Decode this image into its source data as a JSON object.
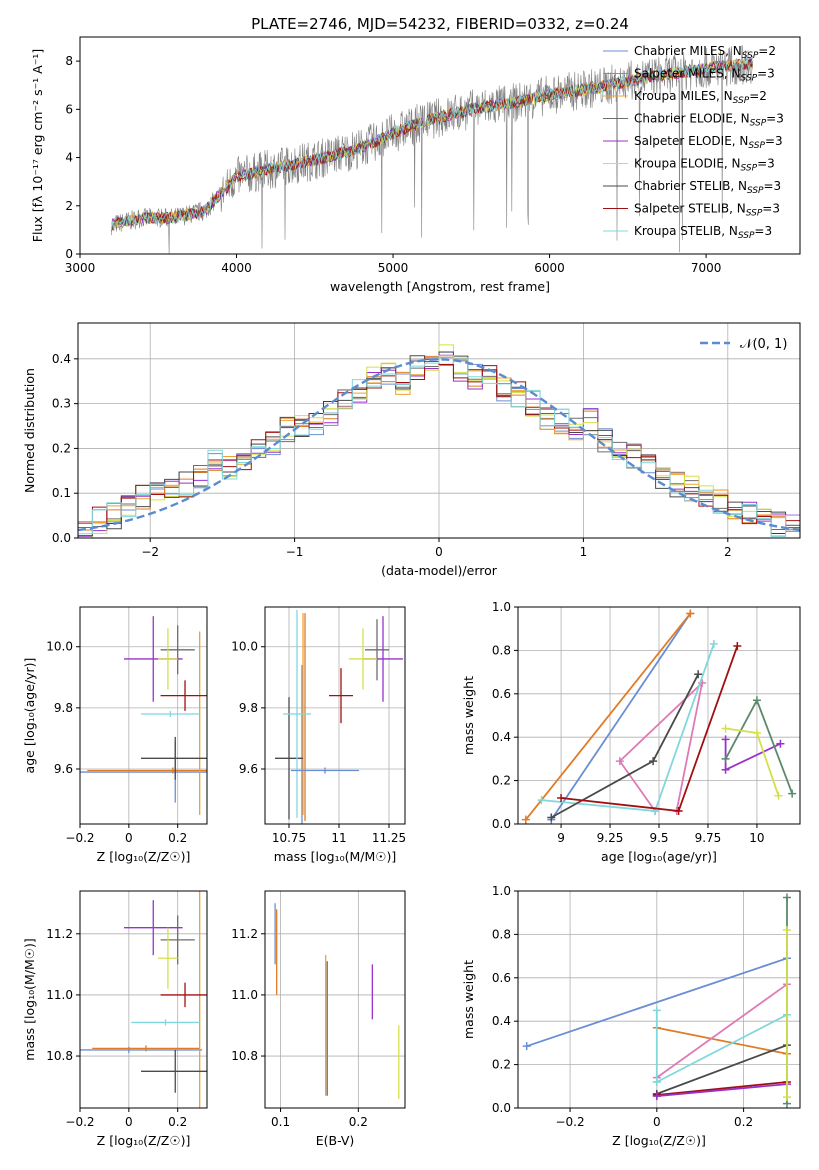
{
  "series_colors": [
    "#6a8ed4",
    "#e07b27",
    "#f0a030",
    "#6e6e6e",
    "#9932cc",
    "#d4e04a",
    "#4a4a4a",
    "#a01010",
    "#80d8dc"
  ],
  "chart_data": [
    {
      "id": "spectrum",
      "type": "line",
      "title": "PLATE=2746, MJD=54232, FIBERID=0332, z=0.24",
      "xlabel": "wavelength [Angstrom, rest frame]",
      "ylabel": "Flux [f_λ 10^-17 erg cm^-2 s^-1 A^-1]",
      "xlim": [
        3000,
        7600
      ],
      "ylim": [
        0,
        9
      ],
      "xticks": [
        3000,
        4000,
        5000,
        6000,
        7000
      ],
      "yticks": [
        0,
        2,
        4,
        6,
        8
      ],
      "legend_position": "top-right",
      "legend": [
        "Chabrier MILES, N_SSP=2",
        "Salpeter MILES, N_SSP=3",
        "Kroupa MILES, N_SSP=2",
        "Chabrier ELODIE, N_SSP=3",
        "Salpeter ELODIE, N_SSP=3",
        "Kroupa ELODIE, N_SSP=3",
        "Chabrier STELIB, N_SSP=3",
        "Salpeter STELIB, N_SSP=3",
        "Kroupa STELIB, N_SSP=3"
      ],
      "continuum": [
        [
          3200,
          1.2
        ],
        [
          3400,
          1.5
        ],
        [
          3600,
          1.5
        ],
        [
          3800,
          1.8
        ],
        [
          4000,
          3.2
        ],
        [
          4200,
          3.5
        ],
        [
          4500,
          3.9
        ],
        [
          4800,
          4.4
        ],
        [
          5000,
          5.0
        ],
        [
          5200,
          5.5
        ],
        [
          5500,
          6.0
        ],
        [
          5800,
          6.3
        ],
        [
          6000,
          6.6
        ],
        [
          6300,
          6.9
        ],
        [
          6600,
          7.3
        ],
        [
          7000,
          7.7
        ],
        [
          7300,
          7.9
        ]
      ],
      "grid": false
    },
    {
      "id": "residuals",
      "type": "histogram",
      "xlabel": "(data-model)/error",
      "ylabel": "Normed distribution",
      "xlim": [
        -2.5,
        2.5
      ],
      "ylim": [
        0,
        0.48
      ],
      "xticks": [
        -2,
        -1,
        0,
        1,
        2
      ],
      "yticks": [
        0.0,
        0.1,
        0.2,
        0.3,
        0.4
      ],
      "legend": [
        "𝒩(0, 1)"
      ],
      "legend_position": "top-right",
      "bin_centers": [
        -2.45,
        -2.35,
        -2.25,
        -2.15,
        -2.05,
        -1.95,
        -1.85,
        -1.75,
        -1.65,
        -1.55,
        -1.45,
        -1.35,
        -1.25,
        -1.15,
        -1.05,
        -0.95,
        -0.85,
        -0.75,
        -0.65,
        -0.55,
        -0.45,
        -0.35,
        -0.25,
        -0.15,
        -0.05,
        0.05,
        0.15,
        0.25,
        0.35,
        0.45,
        0.55,
        0.65,
        0.75,
        0.85,
        0.95,
        1.05,
        1.15,
        1.25,
        1.35,
        1.45,
        1.55,
        1.65,
        1.75,
        1.85,
        1.95,
        2.05,
        2.15,
        2.25,
        2.35,
        2.45
      ],
      "hist_mean": [
        0.03,
        0.04,
        0.05,
        0.07,
        0.09,
        0.1,
        0.12,
        0.12,
        0.14,
        0.17,
        0.16,
        0.18,
        0.2,
        0.21,
        0.24,
        0.25,
        0.26,
        0.28,
        0.31,
        0.33,
        0.36,
        0.37,
        0.35,
        0.38,
        0.4,
        0.41,
        0.38,
        0.36,
        0.37,
        0.33,
        0.32,
        0.3,
        0.27,
        0.26,
        0.24,
        0.26,
        0.22,
        0.2,
        0.18,
        0.17,
        0.14,
        0.12,
        0.11,
        0.1,
        0.08,
        0.06,
        0.05,
        0.04,
        0.03,
        0.03
      ],
      "grid": true
    },
    {
      "id": "age-vs-Z",
      "type": "errorbar",
      "xlabel": "Z [log10(Z/Z☉)]",
      "ylabel": "age  [log10(age/yr)]",
      "xlim": [
        -0.2,
        0.32
      ],
      "ylim": [
        9.42,
        10.13
      ],
      "xticks": [
        -0.2,
        0.0,
        0.2
      ],
      "yticks": [
        9.6,
        9.8,
        10.0
      ],
      "points": [
        {
          "x": 0.19,
          "xerr": 0.4,
          "y": 9.59,
          "yerr": 0.1
        },
        {
          "x": 0.18,
          "xerr": 0.35,
          "y": 9.595,
          "yerr": 0.01
        },
        {
          "x": 0.29,
          "xerr": 0.0,
          "y": 9.75,
          "yerr": 0.3
        },
        {
          "x": 0.2,
          "xerr": 0.07,
          "y": 9.99,
          "yerr": 0.08
        },
        {
          "x": 0.1,
          "xerr": 0.12,
          "y": 9.96,
          "yerr": 0.14
        },
        {
          "x": 0.16,
          "xerr": 0.04,
          "y": 9.96,
          "yerr": 0.1
        },
        {
          "x": 0.19,
          "xerr": 0.14,
          "y": 9.635,
          "yerr": 0.07
        },
        {
          "x": 0.23,
          "xerr": 0.1,
          "y": 9.84,
          "yerr": 0.05
        },
        {
          "x": 0.17,
          "xerr": 0.12,
          "y": 9.78,
          "yerr": 0.01
        }
      ],
      "grid": true
    },
    {
      "id": "age-vs-mass",
      "type": "errorbar",
      "xlabel": "mass [log10(M/M☉)]",
      "ylabel": "",
      "xlim": [
        10.63,
        11.33
      ],
      "ylim": [
        9.42,
        10.13
      ],
      "xticks": [
        10.75,
        11.0,
        11.25
      ],
      "yticks": [
        9.6,
        9.8,
        10.0
      ],
      "points": [
        {
          "x": 10.815,
          "xerr": 0.0,
          "y": 9.64,
          "yerr": 0.3
        },
        {
          "x": 10.83,
          "xerr": 0.0,
          "y": 9.77,
          "yerr": 0.34
        },
        {
          "x": 10.82,
          "xerr": 0.0,
          "y": 9.78,
          "yerr": 0.33
        },
        {
          "x": 11.19,
          "xerr": 0.06,
          "y": 9.99,
          "yerr": 0.1
        },
        {
          "x": 11.22,
          "xerr": 0.1,
          "y": 9.96,
          "yerr": 0.14
        },
        {
          "x": 11.12,
          "xerr": 0.07,
          "y": 9.96,
          "yerr": 0.1
        },
        {
          "x": 10.75,
          "xerr": 0.07,
          "y": 9.635,
          "yerr": 0.2
        },
        {
          "x": 11.01,
          "xerr": 0.06,
          "y": 9.84,
          "yerr": 0.09
        },
        {
          "x": 10.79,
          "xerr": 0.07,
          "y": 9.78,
          "yerr": 0.34
        },
        {
          "x": 10.93,
          "xerr": 0.17,
          "y": 9.595,
          "yerr": 0.01
        }
      ],
      "grid": true
    },
    {
      "id": "weight-vs-age",
      "type": "line",
      "xlabel": "age  [log10(age/yr)]",
      "ylabel": "mass weight",
      "xlim": [
        8.78,
        10.22
      ],
      "ylim": [
        0,
        1
      ],
      "xticks": [
        9.0,
        9.25,
        9.5,
        9.75,
        10.0
      ],
      "yticks": [
        0.0,
        0.2,
        0.4,
        0.6,
        0.8,
        1.0
      ],
      "series": [
        {
          "values": [
            [
              8.95,
              0.02
            ],
            [
              9.66,
              0.97
            ]
          ]
        },
        {
          "values": [
            [
              8.82,
              0.02
            ],
            [
              9.66,
              0.97
            ]
          ]
        },
        {
          "values": [
            [
              9.59,
              0.06
            ],
            [
              9.72,
              0.65
            ],
            [
              9.3,
              0.29
            ],
            [
              9.48,
              0.06
            ]
          ]
        },
        {
          "values": [
            [
              8.9,
              0.11
            ],
            [
              9.48,
              0.06
            ],
            [
              9.78,
              0.83
            ]
          ]
        },
        {
          "values": [
            [
              8.95,
              0.03
            ],
            [
              9.47,
              0.29
            ],
            [
              9.7,
              0.69
            ]
          ]
        },
        {
          "values": [
            [
              9.0,
              0.12
            ],
            [
              9.6,
              0.06
            ],
            [
              9.9,
              0.82
            ]
          ]
        },
        {
          "values": [
            [
              9.84,
              0.39
            ],
            [
              9.84,
              0.25
            ],
            [
              10.12,
              0.37
            ]
          ]
        },
        {
          "values": [
            [
              9.84,
              0.3
            ],
            [
              10.0,
              0.57
            ],
            [
              10.18,
              0.14
            ]
          ]
        },
        {
          "values": [
            [
              9.84,
              0.44
            ],
            [
              10.0,
              0.42
            ],
            [
              10.11,
              0.13
            ]
          ]
        }
      ],
      "grid": true
    },
    {
      "id": "mass-vs-Z",
      "type": "errorbar",
      "xlabel": "Z [log10(Z/Z☉)]",
      "ylabel": "mass [log10(M/M☉)]",
      "xlim": [
        -0.2,
        0.32
      ],
      "ylim": [
        10.63,
        11.34
      ],
      "xticks": [
        -0.2,
        0.0,
        0.2
      ],
      "yticks": [
        10.8,
        11.0,
        11.2
      ],
      "points": [
        {
          "x": 0.0,
          "xerr": 0.3,
          "y": 10.82,
          "yerr": 0.01
        },
        {
          "x": 0.07,
          "xerr": 0.22,
          "y": 10.825,
          "yerr": 0.01
        },
        {
          "x": 0.29,
          "xerr": 0.0,
          "y": 10.9,
          "yerr": 0.45
        },
        {
          "x": 0.2,
          "xerr": 0.07,
          "y": 11.18,
          "yerr": 0.08
        },
        {
          "x": 0.1,
          "xerr": 0.12,
          "y": 11.22,
          "yerr": 0.09
        },
        {
          "x": 0.16,
          "xerr": 0.04,
          "y": 11.12,
          "yerr": 0.1
        },
        {
          "x": 0.19,
          "xerr": 0.14,
          "y": 10.75,
          "yerr": 0.07
        },
        {
          "x": 0.23,
          "xerr": 0.1,
          "y": 11.0,
          "yerr": 0.04
        },
        {
          "x": 0.15,
          "xerr": 0.14,
          "y": 10.91,
          "yerr": 0.01
        }
      ],
      "grid": true
    },
    {
      "id": "mass-vs-EBV",
      "type": "errorbar",
      "xlabel": "E(B-V)",
      "ylabel": "",
      "xlim": [
        0.08,
        0.26
      ],
      "ylim": [
        10.63,
        11.34
      ],
      "xticks": [
        0.1,
        0.2
      ],
      "yticks": [
        10.8,
        11.0,
        11.2
      ],
      "points": [
        {
          "x": 0.093,
          "xerr": 0.0,
          "y": 11.2,
          "yerr": 0.1
        },
        {
          "x": 0.095,
          "xerr": 0.0,
          "y": 11.14,
          "yerr": 0.14
        },
        {
          "x": 0.158,
          "xerr": 0.0,
          "y": 10.9,
          "yerr": 0.23
        },
        {
          "x": 0.16,
          "xerr": 0.0,
          "y": 10.89,
          "yerr": 0.22
        },
        {
          "x": 0.218,
          "xerr": 0.0,
          "y": 11.01,
          "yerr": 0.09
        },
        {
          "x": 0.252,
          "xerr": 0.0,
          "y": 10.78,
          "yerr": 0.12
        }
      ],
      "grid": true
    },
    {
      "id": "weight-vs-Z",
      "type": "line",
      "xlabel": "Z [log10(Z/Z☉)]",
      "ylabel": "mass weight",
      "xlim": [
        -0.32,
        0.33
      ],
      "ylim": [
        0,
        1
      ],
      "xticks": [
        -0.2,
        0.0,
        0.2
      ],
      "yticks": [
        0.0,
        0.2,
        0.4,
        0.6,
        0.8,
        1.0
      ],
      "series": [
        {
          "values": [
            [
              -0.3,
              0.285
            ],
            [
              0.3,
              0.69
            ]
          ]
        },
        {
          "values": [
            [
              0.0,
              0.37
            ],
            [
              0.3,
              0.25
            ]
          ]
        },
        {
          "values": [
            [
              0.0,
              0.14
            ],
            [
              0.3,
              0.57
            ]
          ]
        },
        {
          "values": [
            [
              0.0,
              0.12
            ],
            [
              0.3,
              0.43
            ]
          ]
        },
        {
          "values": [
            [
              0.0,
              0.065
            ],
            [
              0.3,
              0.29
            ]
          ]
        },
        {
          "values": [
            [
              0.0,
              0.06
            ],
            [
              0.3,
              0.12
            ]
          ]
        },
        {
          "values": [
            [
              0.0,
              0.055
            ],
            [
              0.3,
              0.11
            ]
          ]
        },
        {
          "values": [
            [
              0.3,
              0.02
            ],
            [
              0.3,
              0.97
            ]
          ]
        },
        {
          "values": [
            [
              0.3,
              0.05
            ],
            [
              0.3,
              0.82
            ]
          ]
        },
        {
          "values": [
            [
              0.0,
              0.12
            ],
            [
              0.0,
              0.45
            ]
          ]
        }
      ],
      "grid": true
    }
  ]
}
